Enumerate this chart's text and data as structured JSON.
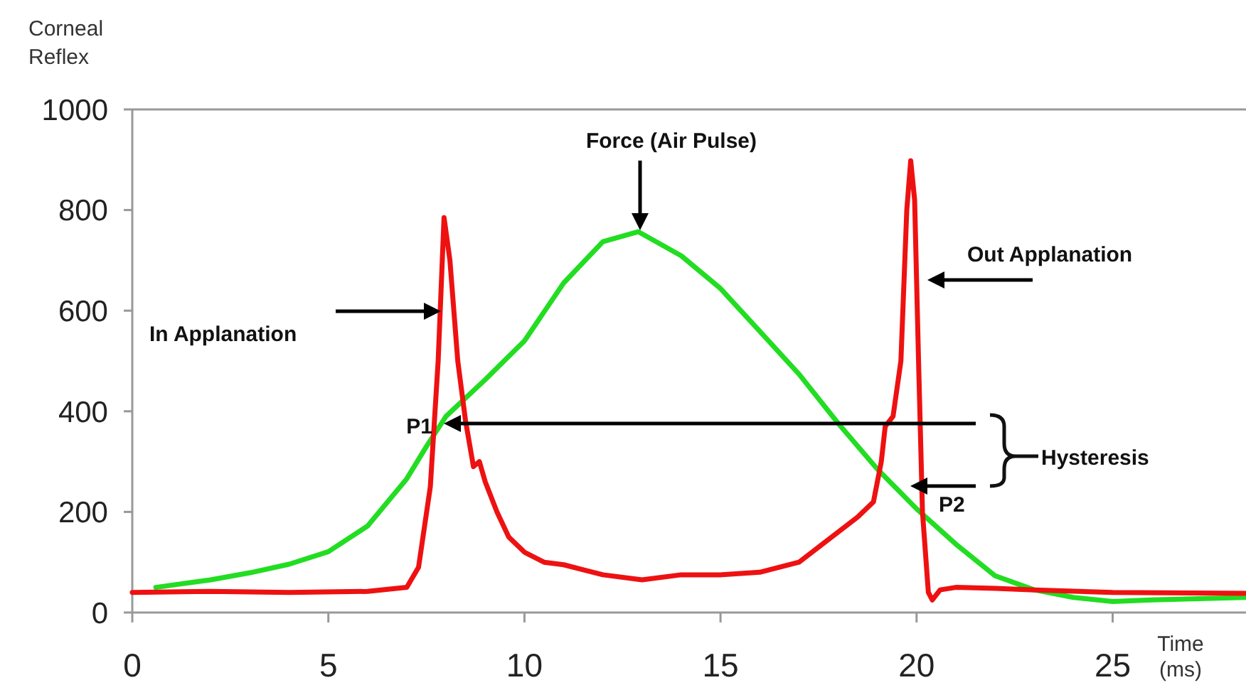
{
  "chart_data": {
    "type": "line",
    "ylabel": "Corneal Reflex",
    "xlabel": "Time (ms)",
    "xlim": [
      0,
      28.4
    ],
    "ylim": [
      0,
      1000
    ],
    "xticks": [
      0,
      5,
      10,
      15,
      20,
      25
    ],
    "yticks": [
      0,
      200,
      400,
      600,
      800,
      1000
    ],
    "grid": false,
    "marker": "none",
    "line_style": "solid",
    "series": [
      {
        "color": "#22dd22",
        "x": [
          0.6,
          2,
          3,
          4,
          5,
          6,
          7,
          7.5,
          8,
          9,
          10,
          11,
          12,
          12.9,
          14,
          15,
          16,
          17,
          18,
          19,
          20,
          21,
          22,
          23,
          24,
          25,
          26,
          28.4
        ],
        "values": [
          50,
          65,
          79,
          96,
          121,
          172,
          266,
          330,
          390,
          463,
          540,
          655,
          737,
          757,
          709,
          644,
          559,
          474,
          376,
          285,
          206,
          136,
          73,
          45,
          30,
          22,
          25,
          30
        ]
      },
      {
        "color": "#ee1111",
        "x": [
          0,
          2,
          4,
          6,
          7,
          7.3,
          7.6,
          7.8,
          7.95,
          8.1,
          8.3,
          8.5,
          8.7,
          8.85,
          9,
          9.3,
          9.6,
          10,
          10.5,
          11,
          11.5,
          12,
          13,
          14,
          15,
          16,
          17,
          17.5,
          18,
          18.5,
          18.9,
          19.1,
          19.2,
          19.4,
          19.6,
          19.75,
          19.85,
          19.95,
          20.05,
          20.15,
          20.3,
          20.4,
          20.6,
          21,
          22,
          23,
          25,
          28.4
        ],
        "values": [
          40,
          42,
          40,
          42,
          50,
          90,
          250,
          500,
          785,
          700,
          500,
          380,
          290,
          300,
          260,
          200,
          150,
          120,
          100,
          95,
          85,
          75,
          65,
          75,
          75,
          80,
          100,
          130,
          160,
          190,
          220,
          300,
          370,
          390,
          500,
          800,
          898,
          820,
          500,
          200,
          40,
          25,
          45,
          50,
          48,
          45,
          40,
          38
        ]
      }
    ],
    "annotations": [
      "Force (Air Pulse)",
      "In Applanation",
      "Out Applanation",
      "P1",
      "P2",
      "Hysteresis"
    ]
  }
}
